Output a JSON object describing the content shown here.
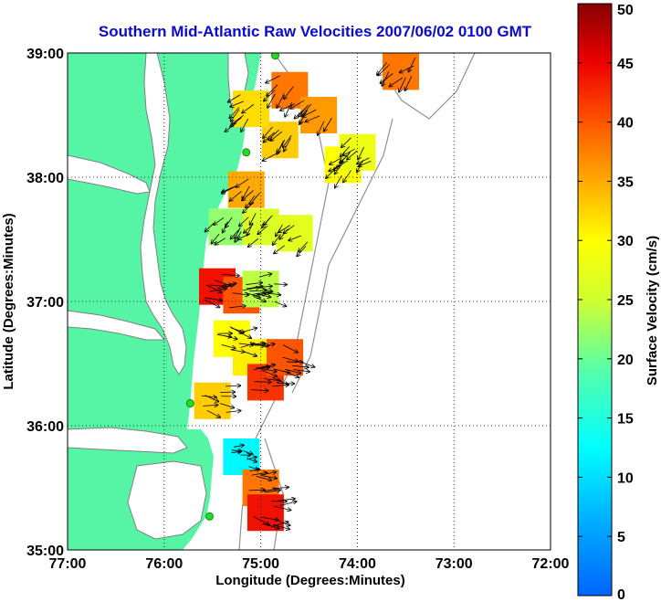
{
  "title": "Southern Mid-Atlantic Raw Velocities 2007/06/02 0100 GMT",
  "map": {
    "xlabel": "Longitude (Degrees:Minutes)",
    "ylabel": "Latitude (Degrees:Minutes)",
    "x_ticks": [
      "77:00",
      "76:00",
      "75:00",
      "74:00",
      "73:00",
      "72:00"
    ],
    "y_ticks": [
      "35:00",
      "36:00",
      "37:00",
      "38:00",
      "39:00"
    ],
    "lon_range": [
      -77,
      -72
    ],
    "lat_range": [
      35,
      39
    ],
    "grid": true
  },
  "colorbar": {
    "label": "Surface Velocity (cm/s)",
    "ticks": [
      "0",
      "5",
      "10",
      "15",
      "20",
      "25",
      "30",
      "35",
      "40",
      "45",
      "50"
    ],
    "range": [
      0,
      50
    ]
  },
  "colors": {
    "land": "#55f5a5",
    "title": "#0a0ad0",
    "coast": "#808080",
    "station": "#22dd22"
  },
  "stations": [
    {
      "lon": -74.85,
      "lat": 38.98
    },
    {
      "lon": -75.15,
      "lat": 38.2
    },
    {
      "lon": -75.73,
      "lat": 36.18
    },
    {
      "lon": -75.53,
      "lat": 35.27
    }
  ],
  "velocity_patches": [
    {
      "lon": -75.45,
      "lat": 37.12,
      "speed": 44
    },
    {
      "lon": -75.2,
      "lat": 37.05,
      "speed": 40
    },
    {
      "lon": -75.0,
      "lat": 37.1,
      "speed": 24
    },
    {
      "lon": -75.3,
      "lat": 36.7,
      "speed": 30
    },
    {
      "lon": -75.1,
      "lat": 36.55,
      "speed": 31
    },
    {
      "lon": -74.95,
      "lat": 36.35,
      "speed": 42
    },
    {
      "lon": -74.75,
      "lat": 36.55,
      "speed": 40
    },
    {
      "lon": -75.35,
      "lat": 37.6,
      "speed": 22
    },
    {
      "lon": -75.0,
      "lat": 37.6,
      "speed": 26
    },
    {
      "lon": -74.65,
      "lat": 37.55,
      "speed": 27
    },
    {
      "lon": -75.15,
      "lat": 37.9,
      "speed": 35
    },
    {
      "lon": -74.8,
      "lat": 38.3,
      "speed": 33
    },
    {
      "lon": -74.7,
      "lat": 38.7,
      "speed": 38
    },
    {
      "lon": -74.4,
      "lat": 38.5,
      "speed": 36
    },
    {
      "lon": -74.15,
      "lat": 38.1,
      "speed": 30
    },
    {
      "lon": -74.0,
      "lat": 38.2,
      "speed": 28
    },
    {
      "lon": -75.1,
      "lat": 38.55,
      "speed": 32
    },
    {
      "lon": -73.55,
      "lat": 38.85,
      "speed": 38
    },
    {
      "lon": -75.5,
      "lat": 36.2,
      "speed": 33
    },
    {
      "lon": -75.2,
      "lat": 35.75,
      "speed": 12
    },
    {
      "lon": -75.0,
      "lat": 35.5,
      "speed": 38
    },
    {
      "lon": -74.95,
      "lat": 35.3,
      "speed": 44
    }
  ]
}
